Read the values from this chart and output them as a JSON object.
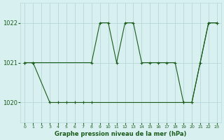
{
  "line1_x": [
    0,
    1,
    8,
    9,
    10,
    11,
    12,
    13,
    14,
    15,
    16,
    17,
    18,
    19,
    20,
    21,
    22,
    23
  ],
  "line1_y": [
    1021.0,
    1021.0,
    1021.0,
    1022.0,
    1022.0,
    1021.0,
    1022.0,
    1022.0,
    1021.0,
    1021.0,
    1021.0,
    1021.0,
    1021.0,
    1020.0,
    1020.0,
    1021.0,
    1022.0,
    1022.0
  ],
  "line2_x": [
    0,
    1,
    3,
    4,
    5,
    6,
    7,
    8,
    19,
    20,
    22,
    23
  ],
  "line2_y": [
    1021.0,
    1021.0,
    1020.0,
    1020.0,
    1020.0,
    1020.0,
    1020.0,
    1020.0,
    1020.0,
    1020.0,
    1022.0,
    1022.0
  ],
  "line_color": "#1a5c1a",
  "marker": "+",
  "bg_color": "#d8f0f0",
  "grid_color": "#b8d8d8",
  "xlabel": "Graphe pression niveau de la mer (hPa)",
  "ylim": [
    1019.5,
    1022.5
  ],
  "xlim": [
    -0.5,
    23.5
  ],
  "yticks": [
    1020,
    1021,
    1022
  ],
  "xticks": [
    0,
    1,
    2,
    3,
    4,
    5,
    6,
    7,
    8,
    9,
    10,
    11,
    12,
    13,
    14,
    15,
    16,
    17,
    18,
    19,
    20,
    21,
    22,
    23
  ]
}
